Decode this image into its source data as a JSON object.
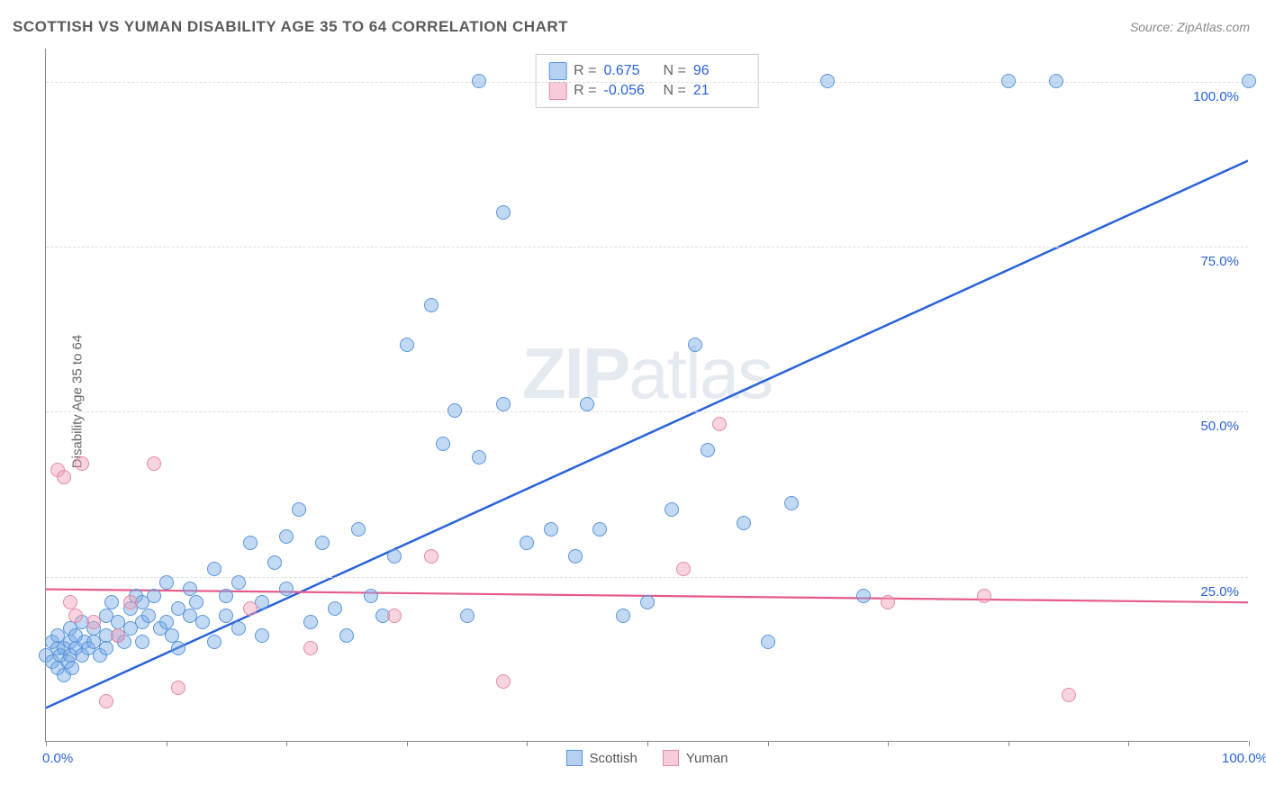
{
  "title": "SCOTTISH VS YUMAN DISABILITY AGE 35 TO 64 CORRELATION CHART",
  "source": "Source: ZipAtlas.com",
  "y_axis_label": "Disability Age 35 to 64",
  "watermark": {
    "bold": "ZIP",
    "rest": "atlas"
  },
  "chart": {
    "type": "scatter",
    "xlim": [
      0,
      100
    ],
    "ylim": [
      0,
      105
    ],
    "x_ticks": [
      0,
      10,
      20,
      30,
      40,
      50,
      60,
      70,
      80,
      90,
      100
    ],
    "x_tick_labels": {
      "0": "0.0%",
      "100": "100.0%"
    },
    "y_gridlines": [
      25,
      50,
      75,
      100
    ],
    "y_tick_labels": {
      "25": "25.0%",
      "50": "50.0%",
      "75": "75.0%",
      "100": "100.0%"
    },
    "background_color": "#ffffff",
    "grid_color": "#dddddd",
    "axis_color": "#888888",
    "point_radius": 8,
    "series": [
      {
        "name": "Scottish",
        "color_fill": "rgba(120,170,230,0.45)",
        "color_stroke": "#5a95d8",
        "class": "blue",
        "R": "0.675",
        "N": "96",
        "trend": {
          "x1": 0,
          "y1": 5,
          "x2": 100,
          "y2": 88,
          "stroke": "#2962d9",
          "width": 2.5
        },
        "points": [
          [
            0,
            13
          ],
          [
            0.5,
            12
          ],
          [
            0.5,
            15
          ],
          [
            1,
            11
          ],
          [
            1,
            14
          ],
          [
            1,
            16
          ],
          [
            1.2,
            13
          ],
          [
            1.5,
            10
          ],
          [
            1.5,
            14
          ],
          [
            1.8,
            12
          ],
          [
            2,
            13
          ],
          [
            2,
            15
          ],
          [
            2,
            17
          ],
          [
            2.2,
            11
          ],
          [
            2.5,
            14
          ],
          [
            2.5,
            16
          ],
          [
            3,
            13
          ],
          [
            3,
            18
          ],
          [
            3.2,
            15
          ],
          [
            3.5,
            14
          ],
          [
            4,
            15
          ],
          [
            4,
            17
          ],
          [
            4.5,
            13
          ],
          [
            5,
            16
          ],
          [
            5,
            19
          ],
          [
            5,
            14
          ],
          [
            5.5,
            21
          ],
          [
            6,
            16
          ],
          [
            6,
            18
          ],
          [
            6.5,
            15
          ],
          [
            7,
            20
          ],
          [
            7,
            17
          ],
          [
            7.5,
            22
          ],
          [
            8,
            18
          ],
          [
            8,
            15
          ],
          [
            8,
            21
          ],
          [
            8.5,
            19
          ],
          [
            9,
            22
          ],
          [
            9.5,
            17
          ],
          [
            10,
            24
          ],
          [
            10,
            18
          ],
          [
            10.5,
            16
          ],
          [
            11,
            20
          ],
          [
            11,
            14
          ],
          [
            12,
            19
          ],
          [
            12,
            23
          ],
          [
            12.5,
            21
          ],
          [
            13,
            18
          ],
          [
            14,
            26
          ],
          [
            14,
            15
          ],
          [
            15,
            22
          ],
          [
            15,
            19
          ],
          [
            16,
            17
          ],
          [
            16,
            24
          ],
          [
            17,
            30
          ],
          [
            18,
            16
          ],
          [
            18,
            21
          ],
          [
            19,
            27
          ],
          [
            20,
            23
          ],
          [
            20,
            31
          ],
          [
            21,
            35
          ],
          [
            22,
            18
          ],
          [
            23,
            30
          ],
          [
            24,
            20
          ],
          [
            25,
            16
          ],
          [
            26,
            32
          ],
          [
            27,
            22
          ],
          [
            28,
            19
          ],
          [
            29,
            28
          ],
          [
            30,
            60
          ],
          [
            32,
            66
          ],
          [
            33,
            45
          ],
          [
            34,
            50
          ],
          [
            35,
            19
          ],
          [
            36,
            43
          ],
          [
            36,
            100
          ],
          [
            38,
            51
          ],
          [
            38,
            80
          ],
          [
            40,
            30
          ],
          [
            42,
            32
          ],
          [
            44,
            28
          ],
          [
            45,
            51
          ],
          [
            46,
            32
          ],
          [
            48,
            19
          ],
          [
            50,
            21
          ],
          [
            52,
            35
          ],
          [
            54,
            60
          ],
          [
            55,
            44
          ],
          [
            58,
            33
          ],
          [
            60,
            15
          ],
          [
            62,
            36
          ],
          [
            65,
            100
          ],
          [
            68,
            22
          ],
          [
            80,
            100
          ],
          [
            84,
            100
          ],
          [
            100,
            100
          ]
        ]
      },
      {
        "name": "Yuman",
        "color_fill": "rgba(240,160,185,0.45)",
        "color_stroke": "#e28aa6",
        "class": "pink",
        "R": "-0.056",
        "N": "21",
        "trend": {
          "x1": 0,
          "y1": 23,
          "x2": 100,
          "y2": 21,
          "stroke": "#e75a8b",
          "width": 2.2
        },
        "points": [
          [
            1,
            41
          ],
          [
            1.5,
            40
          ],
          [
            2,
            21
          ],
          [
            2.5,
            19
          ],
          [
            3,
            42
          ],
          [
            4,
            18
          ],
          [
            5,
            6
          ],
          [
            6,
            16
          ],
          [
            7,
            21
          ],
          [
            9,
            42
          ],
          [
            11,
            8
          ],
          [
            17,
            20
          ],
          [
            22,
            14
          ],
          [
            29,
            19
          ],
          [
            32,
            28
          ],
          [
            38,
            9
          ],
          [
            53,
            26
          ],
          [
            56,
            48
          ],
          [
            70,
            21
          ],
          [
            78,
            22
          ],
          [
            85,
            7
          ]
        ]
      }
    ]
  },
  "legend_bottom": [
    {
      "label": "Scottish",
      "class": "blue"
    },
    {
      "label": "Yuman",
      "class": "pink"
    }
  ]
}
